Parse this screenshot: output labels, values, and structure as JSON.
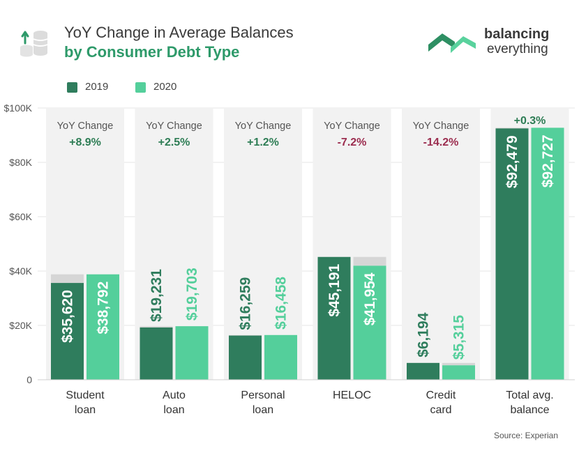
{
  "header": {
    "title_line1": "YoY Change in Average Balances",
    "title_line2": "by Consumer Debt Type",
    "icon": "money-stack-up-arrow-icon"
  },
  "logo": {
    "line1": "balancing",
    "line2": "everything",
    "icon": "balancing-everything-logo-mark"
  },
  "colors": {
    "c2019": "#2f7d5d",
    "c2020": "#54cf9b",
    "panel": "#f2f2f2",
    "positive": "#2e7d55",
    "negative": "#9b2d4f",
    "stub": "#d6d6d6"
  },
  "legend": [
    {
      "label": "2019",
      "color": "#2f7d5d"
    },
    {
      "label": "2020",
      "color": "#54cf9b"
    }
  ],
  "source": "Source: Experian",
  "chart_data": {
    "type": "bar",
    "categories": [
      [
        "Student",
        "loan"
      ],
      [
        "Auto",
        "loan"
      ],
      [
        "Personal",
        "loan"
      ],
      [
        "HELOC"
      ],
      [
        "Credit",
        "card"
      ],
      [
        "Total avg.",
        "balance"
      ]
    ],
    "series": [
      {
        "name": "2019",
        "values": [
          35620,
          19231,
          16259,
          45191,
          6194,
          92479
        ],
        "labels": [
          "$35,620",
          "$19,231",
          "$16,259",
          "$45,191",
          "$6,194",
          "$92,479"
        ]
      },
      {
        "name": "2020",
        "values": [
          38792,
          19703,
          16458,
          41954,
          5315,
          92727
        ],
        "labels": [
          "$38,792",
          "$19,703",
          "$16,458",
          "$41,954",
          "$5,315",
          "$92,727"
        ]
      }
    ],
    "yoy_change_label": "YoY Change",
    "yoy_change": [
      "+8.9%",
      "+2.5%",
      "+1.2%",
      "-7.2%",
      "-14.2%",
      "+0.3%"
    ],
    "yoy_label_shown": [
      true,
      true,
      true,
      true,
      true,
      false
    ],
    "yticks": [
      0,
      20000,
      40000,
      60000,
      80000,
      100000
    ],
    "ytick_labels": [
      "0",
      "$20K",
      "$40K",
      "$60K",
      "$80K",
      "$100K"
    ],
    "ylim": [
      0,
      100000
    ],
    "grid": true,
    "legend_position": "top-left"
  }
}
